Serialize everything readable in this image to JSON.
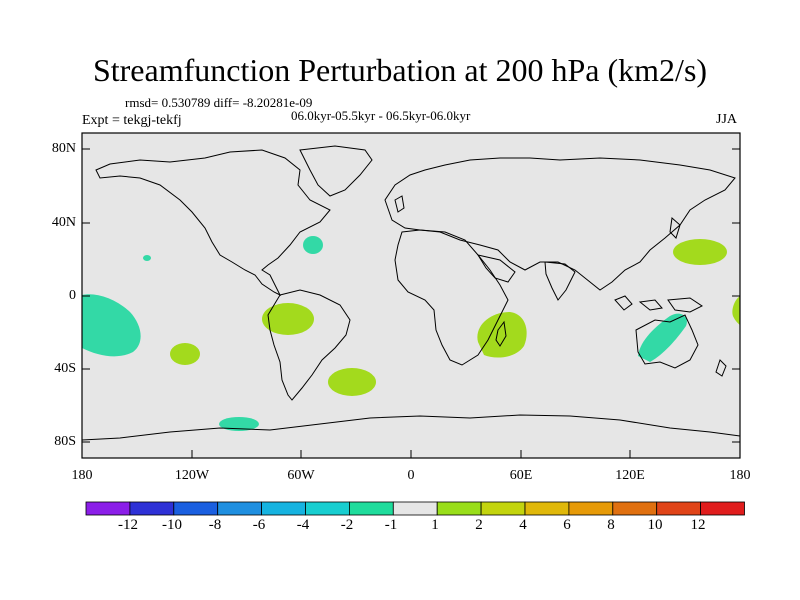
{
  "title": "Streamfunction Perturbation at 200 hPa (km2/s)",
  "stats": "rmsd= 0.530789 diff= -8.20281e-09",
  "period": "06.0kyr-05.5kyr - 06.5kyr-06.0kyr",
  "expt": "Expt = tekgj-tekfj",
  "season": "JJA",
  "lat_labels": [
    "80N",
    "40N",
    "0",
    "40S",
    "80S"
  ],
  "lon_labels": [
    "180",
    "120W",
    "60W",
    "0",
    "60E",
    "120E",
    "180"
  ],
  "colorbar": {
    "labels": [
      "-12",
      "-10",
      "-8",
      "-6",
      "-4",
      "-2",
      "-1",
      "1",
      "2",
      "4",
      "6",
      "8",
      "10",
      "12"
    ],
    "colors": [
      "#8b1ee8",
      "#2e31d6",
      "#1a5fe0",
      "#1f8fe0",
      "#16b3e0",
      "#18ced0",
      "#1fdc9c",
      "#e6e6e6",
      "#99de1a",
      "#c3d40e",
      "#e0b80a",
      "#e69a08",
      "#e07010",
      "#e04418",
      "#e01d1d"
    ]
  },
  "colors": {
    "map_bg": "#e6e6e6",
    "neg_contour": "#33d9a6",
    "pos_contour": "#a3da1d"
  }
}
